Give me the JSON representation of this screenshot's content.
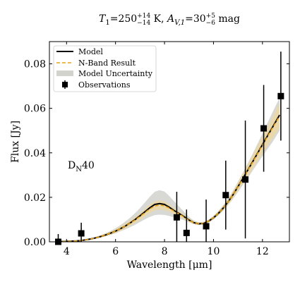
{
  "chart_data": {
    "type": "line",
    "title": "T1=250+14−14 K, AV,1=30+5−6 mag",
    "title_parts": {
      "t_sym": "T",
      "t_sub": "1",
      "t_val": "=250",
      "t_sup": "+14",
      "t_low": "−14",
      "t_unit": " K, ",
      "a_sym": "A",
      "a_sub": "V,1",
      "a_val": "=30",
      "a_sup": "+5",
      "a_low": "−6",
      "a_unit": " mag"
    },
    "xlabel": "Wavelength [μm]",
    "ylabel": "Flux [Jy]",
    "xlim": [
      3.3,
      13.1
    ],
    "ylim": [
      0,
      0.09
    ],
    "xticks": [
      4,
      6,
      8,
      10,
      12
    ],
    "yticks": [
      0.0,
      0.02,
      0.04,
      0.06,
      0.08
    ],
    "xtick_labels": [
      "4",
      "6",
      "8",
      "10",
      "12"
    ],
    "ytick_labels": [
      "0.00",
      "0.02",
      "0.04",
      "0.06",
      "0.08"
    ],
    "annotation": "DN40",
    "annotation_parts": {
      "main": "D",
      "sub": "N",
      "rest": "40"
    },
    "annotation_pos": {
      "x": 4.0,
      "y": 0.034
    },
    "legend": {
      "placement": "top-left",
      "entries": [
        {
          "label": "Model",
          "style": "solid-black"
        },
        {
          "label": "N-Band Result",
          "style": "dashed-orange"
        },
        {
          "label": "Model Uncertainty",
          "style": "band-gray"
        },
        {
          "label": "Observations",
          "style": "marker-square"
        }
      ]
    },
    "colors": {
      "model": "#000000",
      "nband": "#e8a317",
      "uncertainty": "#a9a9a0",
      "nband_band": "#f5d98a"
    },
    "x": [
      3.6,
      3.8,
      4.0,
      4.2,
      4.4,
      4.6,
      4.8,
      5.0,
      5.2,
      5.4,
      5.6,
      5.8,
      6.0,
      6.2,
      6.4,
      6.6,
      6.8,
      7.0,
      7.2,
      7.4,
      7.6,
      7.8,
      8.0,
      8.2,
      8.4,
      8.6,
      8.8,
      9.0,
      9.2,
      9.4,
      9.6,
      9.8,
      10.0,
      10.2,
      10.4,
      10.6,
      10.8,
      11.0,
      11.2,
      11.4,
      11.6,
      11.8,
      12.0,
      12.2,
      12.4,
      12.7
    ],
    "series": [
      {
        "name": "Model",
        "values": [
          0.0,
          0.0001,
          0.0002,
          0.0003,
          0.0004,
          0.0006,
          0.0009,
          0.0013,
          0.0018,
          0.0024,
          0.0031,
          0.0039,
          0.0048,
          0.0059,
          0.0071,
          0.0085,
          0.01,
          0.0117,
          0.0135,
          0.0153,
          0.0168,
          0.0172,
          0.0168,
          0.0155,
          0.014,
          0.0127,
          0.0113,
          0.0098,
          0.0086,
          0.0081,
          0.0083,
          0.0093,
          0.0108,
          0.0128,
          0.0152,
          0.018,
          0.0212,
          0.0248,
          0.0285,
          0.0322,
          0.036,
          0.0398,
          0.0437,
          0.0475,
          0.0513,
          0.057
        ]
      },
      {
        "name": "N-Band Result",
        "values": [
          0.0,
          0.0001,
          0.0002,
          0.0003,
          0.0004,
          0.0006,
          0.0009,
          0.0013,
          0.0018,
          0.0024,
          0.0031,
          0.0039,
          0.0048,
          0.0059,
          0.0071,
          0.0084,
          0.0098,
          0.0114,
          0.0131,
          0.0148,
          0.0161,
          0.0165,
          0.0162,
          0.0151,
          0.0137,
          0.0125,
          0.0111,
          0.0097,
          0.0086,
          0.0081,
          0.0083,
          0.0093,
          0.0108,
          0.0128,
          0.0152,
          0.018,
          0.0212,
          0.0247,
          0.0284,
          0.0321,
          0.0358,
          0.0396,
          0.0434,
          0.0472,
          0.051,
          0.0565
        ]
      }
    ],
    "uncertainty_band": {
      "lower": [
        0.0,
        0.0001,
        0.0002,
        0.0002,
        0.0003,
        0.0005,
        0.0007,
        0.001,
        0.0014,
        0.0019,
        0.0025,
        0.0031,
        0.0038,
        0.0047,
        0.0056,
        0.0066,
        0.0077,
        0.0089,
        0.0101,
        0.0112,
        0.012,
        0.0122,
        0.0121,
        0.0116,
        0.0109,
        0.0104,
        0.0097,
        0.0087,
        0.0079,
        0.0075,
        0.0077,
        0.0086,
        0.01,
        0.0118,
        0.014,
        0.0165,
        0.0193,
        0.0224,
        0.0256,
        0.0288,
        0.032,
        0.0352,
        0.0385,
        0.0416,
        0.0447,
        0.05
      ],
      "upper": [
        0.0,
        0.0002,
        0.0003,
        0.0004,
        0.0006,
        0.0008,
        0.0012,
        0.0017,
        0.0023,
        0.003,
        0.0039,
        0.0049,
        0.0061,
        0.0075,
        0.0091,
        0.0109,
        0.0129,
        0.0152,
        0.0177,
        0.0203,
        0.0225,
        0.0232,
        0.0226,
        0.0205,
        0.0181,
        0.0158,
        0.0135,
        0.0112,
        0.0095,
        0.0088,
        0.009,
        0.01,
        0.0117,
        0.0139,
        0.0165,
        0.0196,
        0.0231,
        0.027,
        0.0311,
        0.0353,
        0.0396,
        0.0441,
        0.0487,
        0.0533,
        0.058,
        0.0648
      ]
    },
    "nband_band": {
      "lower": [
        0.0,
        0.0001,
        0.0001,
        0.0002,
        0.0003,
        0.0005,
        0.0007,
        0.001,
        0.0014,
        0.0019,
        0.0025,
        0.0032,
        0.004,
        0.0049,
        0.006,
        0.0072,
        0.0085,
        0.0099,
        0.0114,
        0.0129,
        0.0141,
        0.0145,
        0.0143,
        0.0135,
        0.0124,
        0.0114,
        0.0102,
        0.009,
        0.008,
        0.0076,
        0.0078,
        0.0087,
        0.0101,
        0.012,
        0.0142,
        0.0168,
        0.0197,
        0.0229,
        0.0262,
        0.0295,
        0.0328,
        0.0362,
        0.0396,
        0.0429,
        0.0463,
        0.0512
      ],
      "upper": [
        0.0,
        0.0002,
        0.0003,
        0.0004,
        0.0005,
        0.0007,
        0.0011,
        0.0016,
        0.0022,
        0.0029,
        0.0037,
        0.0046,
        0.0056,
        0.0069,
        0.0082,
        0.0096,
        0.0111,
        0.0129,
        0.0148,
        0.0167,
        0.0181,
        0.0186,
        0.0182,
        0.0168,
        0.0151,
        0.0137,
        0.0121,
        0.0105,
        0.0093,
        0.0087,
        0.0089,
        0.0099,
        0.0115,
        0.0136,
        0.0162,
        0.0192,
        0.0227,
        0.0265,
        0.0306,
        0.0347,
        0.0389,
        0.0431,
        0.0473,
        0.0515,
        0.0557,
        0.0622
      ]
    },
    "observations": [
      {
        "x": 3.66,
        "y": 0.0,
        "yerr": 0.0035
      },
      {
        "x": 4.6,
        "y": 0.0038,
        "yerr": 0.0048
      },
      {
        "x": 8.5,
        "y": 0.011,
        "yerr": 0.0115
      },
      {
        "x": 8.9,
        "y": 0.004,
        "yerr": 0.0105
      },
      {
        "x": 9.7,
        "y": 0.007,
        "yerr": 0.012
      },
      {
        "x": 10.5,
        "y": 0.021,
        "yerr": 0.0155
      },
      {
        "x": 11.3,
        "y": 0.028,
        "yerr": 0.0265
      },
      {
        "x": 12.05,
        "y": 0.051,
        "yerr": 0.0195
      },
      {
        "x": 12.75,
        "y": 0.0655,
        "yerr": 0.02
      }
    ]
  }
}
